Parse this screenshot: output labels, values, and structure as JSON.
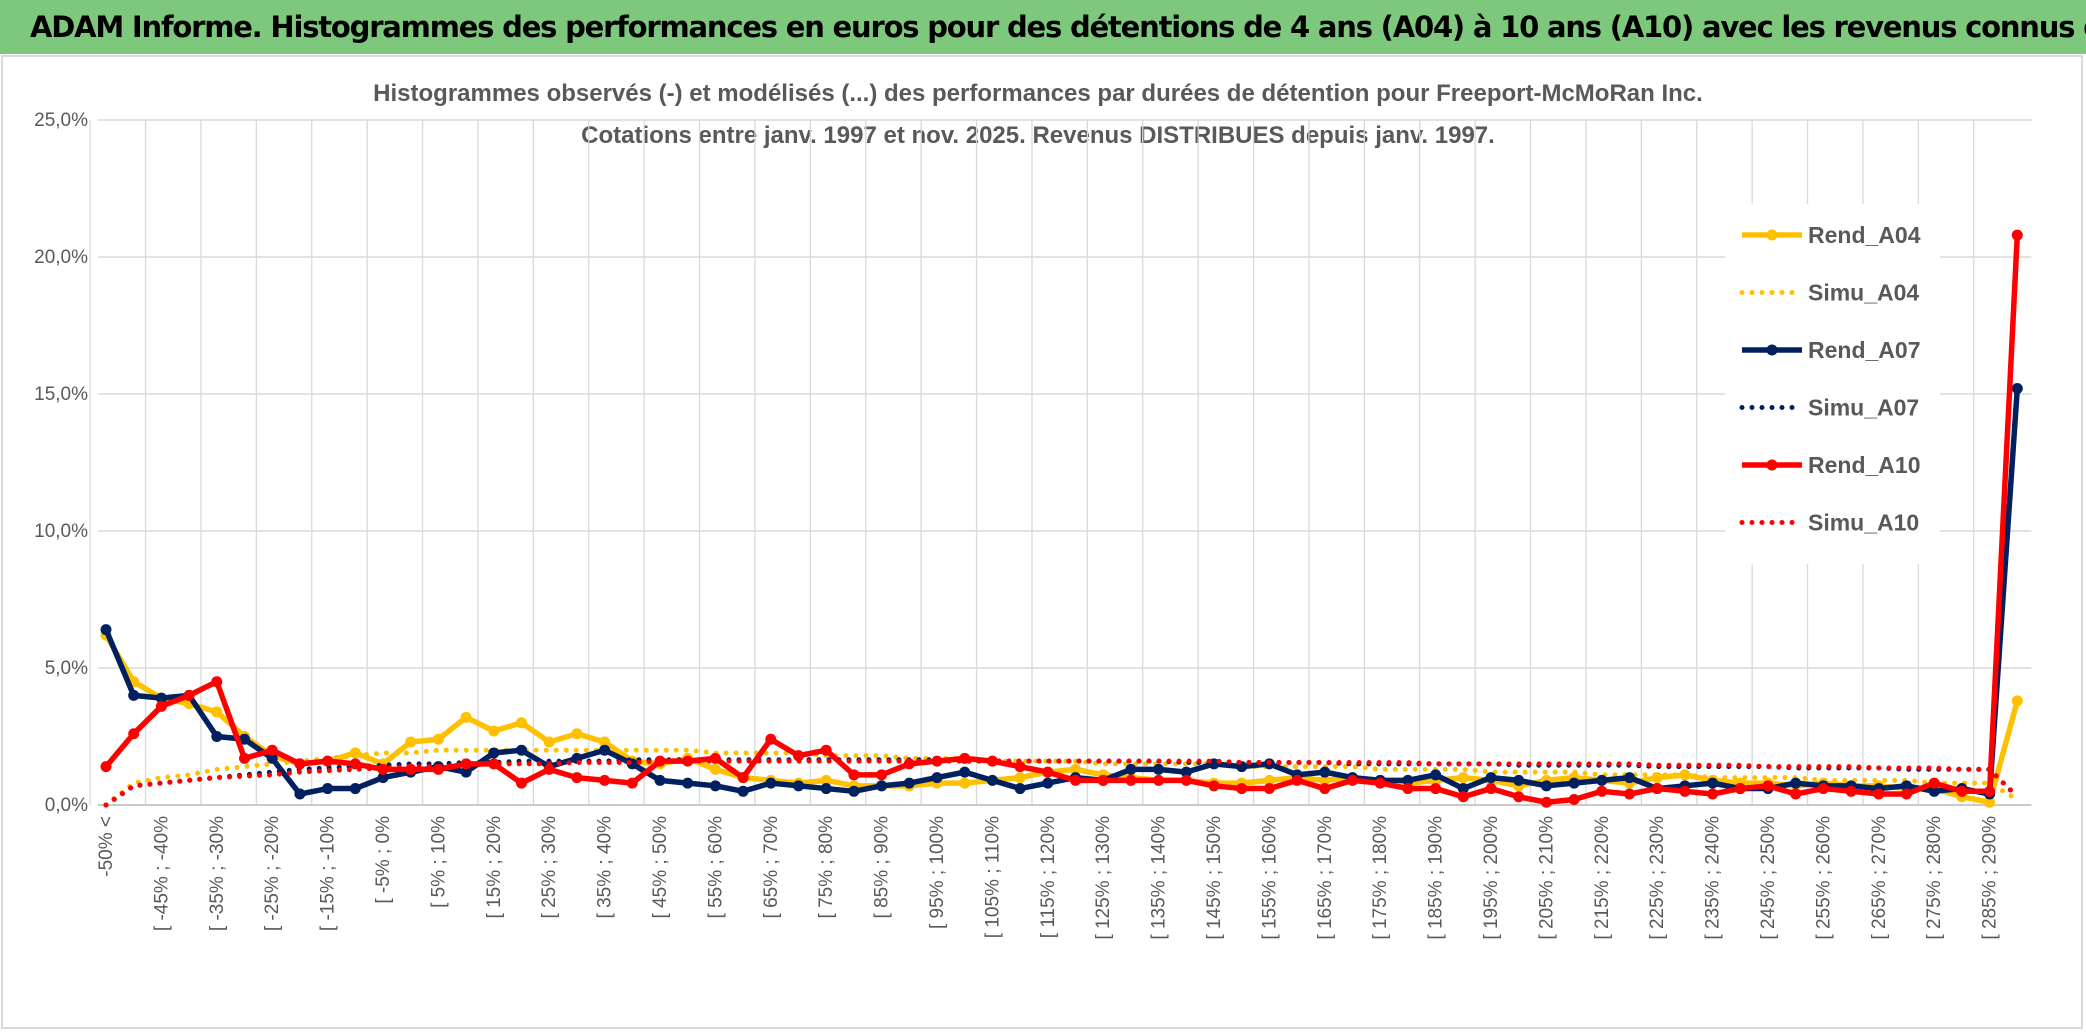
{
  "header": {
    "title": "ADAM Informe. Histogrammes des performances en euros pour des détentions de 4 ans (A04) à 10 ans (A10) avec les revenus connus distribués"
  },
  "chart_data": {
    "type": "line",
    "title": "Histogrammes observés (-) et modélisés (...) des performances par durées de détention pour Freeport-McMoRan Inc.",
    "subtitle": "Cotations entre janv. 1997 et nov. 2025. Revenus DISTRIBUES depuis janv. 1997.",
    "categories": [
      "-50% <",
      null,
      "[ -45% ; -40%",
      null,
      "[ -35% ; -30%",
      null,
      "[ -25% ; -20%",
      null,
      "[ -15% ; -10%",
      null,
      "[ -5% ; 0%",
      null,
      "[ 5% ; 10%",
      null,
      "[ 15% ; 20%",
      null,
      "[ 25% ; 30%",
      null,
      "[ 35% ; 40%",
      null,
      "[ 45% ; 50%",
      null,
      "[ 55% ; 60%",
      null,
      "[ 65% ; 70%",
      null,
      "[ 75% ; 80%",
      null,
      "[ 85% ; 90%",
      null,
      "[ 95% ; 100%",
      null,
      "[ 105% ; 110%",
      null,
      "[ 115% ; 120%",
      null,
      "[ 125% ; 130%",
      null,
      "[ 135% ; 140%",
      null,
      "[ 145% ; 150%",
      null,
      "[ 155% ; 160%",
      null,
      "[ 165% ; 170%",
      null,
      "[ 175% ; 180%",
      null,
      "[ 185% ; 190%",
      null,
      "[ 195% ; 200%",
      null,
      "[ 205% ; 210%",
      null,
      "[ 215% ; 220%",
      null,
      "[ 225% ; 230%",
      null,
      "[ 235% ; 240%",
      null,
      "[ 245% ; 250%",
      null,
      "[ 255% ; 260%",
      null,
      "[ 265% ; 270%",
      null,
      "[ 275% ; 280%",
      null,
      "[ 285% ; 290%",
      null
    ],
    "ylim": [
      0,
      25
    ],
    "yticks": [
      {
        "value": 0,
        "label": "0,0%"
      },
      {
        "value": 5,
        "label": "5,0%"
      },
      {
        "value": 10,
        "label": "10,0%"
      },
      {
        "value": 15,
        "label": "15,0%"
      },
      {
        "value": 20,
        "label": "20,0%"
      },
      {
        "value": 25,
        "label": "25,0%"
      }
    ],
    "grid": true,
    "legend": "right",
    "series": [
      {
        "name": "Rend_A04",
        "color": "#ffc000",
        "style": "solid",
        "markers": true,
        "values": [
          6.2,
          4.5,
          3.9,
          3.7,
          3.4,
          2.5,
          1.8,
          1.5,
          1.6,
          1.9,
          1.5,
          2.3,
          2.4,
          3.2,
          2.7,
          3.0,
          2.3,
          2.6,
          2.3,
          1.6,
          1.5,
          1.7,
          1.3,
          1.0,
          0.9,
          0.8,
          0.9,
          0.7,
          0.7,
          0.7,
          0.8,
          0.8,
          0.9,
          1.0,
          1.2,
          1.3,
          1.1,
          1.0,
          0.9,
          0.9,
          0.8,
          0.8,
          0.9,
          1.0,
          0.9,
          1.0,
          0.9,
          0.8,
          0.9,
          1.0,
          0.9,
          0.7,
          0.9,
          1.0,
          0.9,
          0.8,
          1.0,
          1.1,
          0.9,
          0.8,
          0.8,
          0.7,
          0.8,
          0.7,
          0.7,
          0.6,
          0.6,
          0.3,
          0.1,
          3.8
        ]
      },
      {
        "name": "Simu_A04",
        "color": "#ffc000",
        "style": "dotted",
        "markers": false,
        "values": [
          0.0,
          0.8,
          1.0,
          1.1,
          1.3,
          1.4,
          1.5,
          1.6,
          1.7,
          1.8,
          1.9,
          1.9,
          2.0,
          2.0,
          2.0,
          2.0,
          2.0,
          2.0,
          2.0,
          2.0,
          2.0,
          2.0,
          1.9,
          1.9,
          1.9,
          1.9,
          1.8,
          1.8,
          1.8,
          1.7,
          1.7,
          1.7,
          1.6,
          1.6,
          1.6,
          1.6,
          1.5,
          1.5,
          1.5,
          1.5,
          1.5,
          1.4,
          1.4,
          1.4,
          1.4,
          1.4,
          1.3,
          1.3,
          1.3,
          1.3,
          1.2,
          1.2,
          1.2,
          1.2,
          1.1,
          1.1,
          1.1,
          1.1,
          1.0,
          1.0,
          1.0,
          1.0,
          0.9,
          0.9,
          0.9,
          0.9,
          0.8,
          0.8,
          0.8,
          0.2
        ]
      },
      {
        "name": "Rend_A07",
        "color": "#002060",
        "style": "solid",
        "markers": true,
        "values": [
          6.4,
          4.0,
          3.9,
          4.0,
          2.5,
          2.4,
          1.7,
          0.4,
          0.6,
          0.6,
          1.0,
          1.2,
          1.4,
          1.2,
          1.9,
          2.0,
          1.4,
          1.7,
          2.0,
          1.5,
          0.9,
          0.8,
          0.7,
          0.5,
          0.8,
          0.7,
          0.6,
          0.5,
          0.7,
          0.8,
          1.0,
          1.2,
          0.9,
          0.6,
          0.8,
          1.0,
          0.9,
          1.3,
          1.3,
          1.2,
          1.5,
          1.4,
          1.5,
          1.1,
          1.2,
          1.0,
          0.9,
          0.9,
          1.1,
          0.6,
          1.0,
          0.9,
          0.7,
          0.8,
          0.9,
          1.0,
          0.6,
          0.7,
          0.8,
          0.6,
          0.6,
          0.8,
          0.7,
          0.7,
          0.6,
          0.7,
          0.5,
          0.6,
          0.4,
          15.2
        ]
      },
      {
        "name": "Simu_A07",
        "color": "#002060",
        "style": "dotted",
        "markers": false,
        "values": [
          0.0,
          0.7,
          0.8,
          0.9,
          1.0,
          1.1,
          1.2,
          1.3,
          1.35,
          1.4,
          1.45,
          1.5,
          1.5,
          1.55,
          1.55,
          1.6,
          1.6,
          1.6,
          1.6,
          1.65,
          1.65,
          1.65,
          1.65,
          1.65,
          1.65,
          1.65,
          1.65,
          1.65,
          1.65,
          1.65,
          1.65,
          1.6,
          1.6,
          1.6,
          1.6,
          1.6,
          1.6,
          1.6,
          1.6,
          1.55,
          1.55,
          1.55,
          1.55,
          1.55,
          1.55,
          1.5,
          1.5,
          1.5,
          1.5,
          1.5,
          1.5,
          1.45,
          1.45,
          1.45,
          1.45,
          1.45,
          1.4,
          1.4,
          1.4,
          1.4,
          1.4,
          1.35,
          1.35,
          1.35,
          1.35,
          1.3,
          1.3,
          1.3,
          1.3,
          0.3
        ]
      },
      {
        "name": "Rend_A10",
        "color": "#ff0000",
        "style": "solid",
        "markers": true,
        "values": [
          1.4,
          2.6,
          3.6,
          4.0,
          4.5,
          1.7,
          2.0,
          1.5,
          1.6,
          1.5,
          1.3,
          1.3,
          1.3,
          1.5,
          1.5,
          0.8,
          1.3,
          1.0,
          0.9,
          0.8,
          1.6,
          1.6,
          1.7,
          1.0,
          2.4,
          1.8,
          2.0,
          1.1,
          1.1,
          1.5,
          1.6,
          1.7,
          1.6,
          1.4,
          1.2,
          0.9,
          0.9,
          0.9,
          0.9,
          0.9,
          0.7,
          0.6,
          0.6,
          0.9,
          0.6,
          0.9,
          0.8,
          0.6,
          0.6,
          0.3,
          0.6,
          0.3,
          0.1,
          0.2,
          0.5,
          0.4,
          0.6,
          0.5,
          0.4,
          0.6,
          0.7,
          0.4,
          0.6,
          0.5,
          0.4,
          0.4,
          0.8,
          0.5,
          0.5,
          20.8
        ]
      },
      {
        "name": "Simu_A10",
        "color": "#ff0000",
        "style": "dotted",
        "markers": false,
        "values": [
          0.0,
          0.7,
          0.8,
          0.9,
          1.0,
          1.05,
          1.1,
          1.2,
          1.25,
          1.3,
          1.35,
          1.4,
          1.4,
          1.45,
          1.5,
          1.5,
          1.5,
          1.55,
          1.55,
          1.55,
          1.6,
          1.6,
          1.6,
          1.6,
          1.6,
          1.6,
          1.6,
          1.6,
          1.6,
          1.6,
          1.6,
          1.6,
          1.6,
          1.6,
          1.6,
          1.6,
          1.6,
          1.6,
          1.6,
          1.6,
          1.6,
          1.55,
          1.55,
          1.55,
          1.55,
          1.55,
          1.55,
          1.55,
          1.5,
          1.5,
          1.5,
          1.5,
          1.5,
          1.5,
          1.5,
          1.5,
          1.45,
          1.45,
          1.45,
          1.45,
          1.4,
          1.4,
          1.4,
          1.4,
          1.35,
          1.35,
          1.35,
          1.3,
          1.3,
          0.3
        ]
      }
    ]
  }
}
